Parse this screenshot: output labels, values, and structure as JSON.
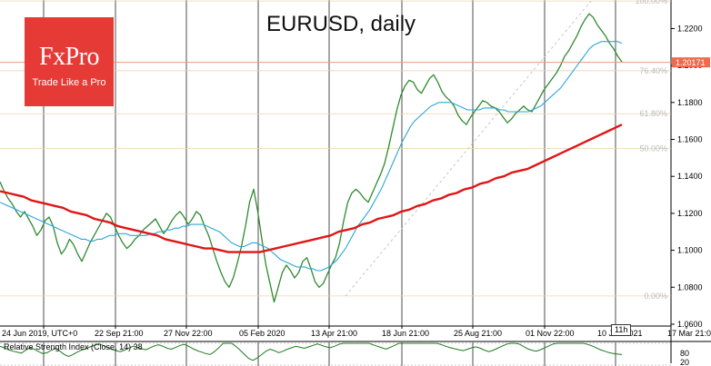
{
  "logo": {
    "brand": "FxPro",
    "tagline": "Trade Like a Pro"
  },
  "title": "EURUSD, daily",
  "countdown": "11h",
  "chart_data": [
    {
      "type": "line",
      "title": "EURUSD, daily",
      "description_series": "candlesticks approximated as close line",
      "x_tick_labels": [
        "24 Jun 2019, UTC+0",
        "22 Sep 21:00",
        "27 Nov 22:00",
        "05 Feb 2020",
        "13 Apr 21:00",
        "18 Jun 21:00",
        "25 Aug 21:00",
        "01 Nov 22:00",
        "10 Jan 2021",
        "17 Mar 21:00"
      ],
      "y_tick_labels": [
        "1.2200",
        "1.2000",
        "1.1800",
        "1.1600",
        "1.1400",
        "1.1200",
        "1.1000",
        "1.0800",
        "1.0600"
      ],
      "ylim": [
        1.059,
        1.233
      ],
      "grid": true,
      "current_price": "1.20171",
      "current_price_value": 1.2017,
      "fib_levels": [
        {
          "label": "100.00%",
          "value": 1.2349
        },
        {
          "label": "76.40%",
          "value": 1.1972
        },
        {
          "label": "61.80%",
          "value": 1.1739
        },
        {
          "label": "50.00%",
          "value": 1.1551
        },
        {
          "label": "0.00%",
          "value": 1.0753
        }
      ],
      "series": [
        {
          "name": "Price",
          "color": "#2f8a2f",
          "values": [
            1.137,
            1.132,
            1.128,
            1.125,
            1.121,
            1.118,
            1.121,
            1.117,
            1.113,
            1.108,
            1.111,
            1.116,
            1.118,
            1.113,
            1.104,
            1.098,
            1.101,
            1.106,
            1.103,
            1.098,
            1.094,
            1.099,
            1.104,
            1.108,
            1.112,
            1.116,
            1.12,
            1.118,
            1.113,
            1.108,
            1.104,
            1.101,
            1.103,
            1.106,
            1.108,
            1.111,
            1.113,
            1.115,
            1.117,
            1.113,
            1.109,
            1.112,
            1.116,
            1.119,
            1.121,
            1.118,
            1.114,
            1.117,
            1.121,
            1.119,
            1.113,
            1.108,
            1.101,
            1.094,
            1.088,
            1.083,
            1.08,
            1.085,
            1.093,
            1.102,
            1.113,
            1.126,
            1.133,
            1.121,
            1.106,
            1.092,
            1.082,
            1.072,
            1.08,
            1.088,
            1.092,
            1.089,
            1.085,
            1.088,
            1.094,
            1.096,
            1.09,
            1.083,
            1.08,
            1.082,
            1.087,
            1.092,
            1.096,
            1.104,
            1.116,
            1.126,
            1.131,
            1.133,
            1.131,
            1.128,
            1.126,
            1.131,
            1.136,
            1.141,
            1.147,
            1.156,
            1.166,
            1.176,
            1.184,
            1.189,
            1.192,
            1.191,
            1.187,
            1.185,
            1.189,
            1.193,
            1.195,
            1.191,
            1.186,
            1.183,
            1.181,
            1.178,
            1.173,
            1.17,
            1.168,
            1.172,
            1.175,
            1.178,
            1.181,
            1.18,
            1.178,
            1.177,
            1.175,
            1.172,
            1.169,
            1.171,
            1.174,
            1.176,
            1.178,
            1.176,
            1.175,
            1.179,
            1.183,
            1.187,
            1.19,
            1.193,
            1.196,
            1.2,
            1.205,
            1.208,
            1.212,
            1.216,
            1.221,
            1.225,
            1.228,
            1.226,
            1.222,
            1.219,
            1.216,
            1.212,
            1.209,
            1.205,
            1.202
          ]
        },
        {
          "name": "MA fast",
          "color": "#2aa7d8",
          "values": [
            1.126,
            1.125,
            1.124,
            1.123,
            1.122,
            1.121,
            1.12,
            1.119,
            1.118,
            1.117,
            1.116,
            1.115,
            1.114,
            1.113,
            1.112,
            1.111,
            1.11,
            1.109,
            1.108,
            1.107,
            1.106,
            1.106,
            1.105,
            1.105,
            1.106,
            1.106,
            1.107,
            1.108,
            1.108,
            1.109,
            1.109,
            1.109,
            1.108,
            1.108,
            1.108,
            1.108,
            1.108,
            1.109,
            1.109,
            1.11,
            1.11,
            1.111,
            1.111,
            1.112,
            1.112,
            1.113,
            1.113,
            1.114,
            1.114,
            1.114,
            1.114,
            1.113,
            1.112,
            1.111,
            1.11,
            1.108,
            1.106,
            1.104,
            1.103,
            1.102,
            1.102,
            1.103,
            1.104,
            1.104,
            1.103,
            1.102,
            1.101,
            1.099,
            1.097,
            1.095,
            1.094,
            1.093,
            1.092,
            1.091,
            1.091,
            1.091,
            1.09,
            1.09,
            1.089,
            1.089,
            1.09,
            1.091,
            1.093,
            1.095,
            1.098,
            1.101,
            1.105,
            1.109,
            1.113,
            1.116,
            1.119,
            1.122,
            1.126,
            1.13,
            1.134,
            1.139,
            1.144,
            1.149,
            1.154,
            1.159,
            1.163,
            1.167,
            1.17,
            1.172,
            1.174,
            1.176,
            1.178,
            1.179,
            1.18,
            1.18,
            1.18,
            1.18,
            1.179,
            1.178,
            1.177,
            1.176,
            1.176,
            1.176,
            1.176,
            1.177,
            1.177,
            1.177,
            1.177,
            1.176,
            1.176,
            1.175,
            1.175,
            1.175,
            1.175,
            1.175,
            1.175,
            1.176,
            1.177,
            1.178,
            1.18,
            1.182,
            1.184,
            1.186,
            1.188,
            1.191,
            1.194,
            1.197,
            1.2,
            1.203,
            1.206,
            1.209,
            1.211,
            1.212,
            1.213,
            1.213,
            1.213,
            1.213,
            1.213,
            1.212
          ]
        },
        {
          "name": "MA slow",
          "color": "#e01616",
          "values": [
            1.132,
            1.131,
            1.13,
            1.129,
            1.127,
            1.126,
            1.125,
            1.124,
            1.123,
            1.121,
            1.12,
            1.119,
            1.117,
            1.116,
            1.115,
            1.113,
            1.112,
            1.111,
            1.11,
            1.109,
            1.108,
            1.106,
            1.105,
            1.104,
            1.103,
            1.102,
            1.101,
            1.101,
            1.1,
            1.099,
            1.099,
            1.099,
            1.099,
            1.099,
            1.1,
            1.101,
            1.102,
            1.103,
            1.104,
            1.105,
            1.106,
            1.107,
            1.108,
            1.11,
            1.111,
            1.112,
            1.114,
            1.115,
            1.117,
            1.118,
            1.119,
            1.121,
            1.122,
            1.124,
            1.125,
            1.127,
            1.128,
            1.13,
            1.131,
            1.133,
            1.134,
            1.136,
            1.137,
            1.139,
            1.14,
            1.142,
            1.143,
            1.144,
            1.146,
            1.148,
            1.15,
            1.152,
            1.154,
            1.156,
            1.158,
            1.16,
            1.162,
            1.164,
            1.166,
            1.168
          ]
        }
      ]
    },
    {
      "type": "line",
      "title": "Relative Strength Index (Close, 14) 38",
      "ylim": [
        20,
        80
      ],
      "y_tick_labels": [
        "80",
        "20"
      ],
      "grid": true,
      "series": [
        {
          "name": "RSI",
          "color": "#1f7a1f",
          "values": [
            55,
            52,
            48,
            45,
            43,
            41,
            47,
            52,
            49,
            44,
            40,
            42,
            47,
            51,
            45,
            38,
            34,
            38,
            43,
            47,
            50,
            54,
            57,
            60,
            57,
            53,
            49,
            46,
            44,
            47,
            51,
            55,
            53,
            50,
            48,
            52,
            56,
            58,
            55,
            51,
            49,
            53,
            57,
            59,
            55,
            50,
            46,
            43,
            40,
            38,
            44,
            52,
            61,
            72,
            64,
            55,
            47,
            38,
            30,
            26,
            31,
            38,
            45,
            49,
            46,
            42,
            45,
            49,
            52,
            55,
            53,
            51,
            54,
            57,
            60,
            57,
            54,
            52,
            55,
            59,
            63,
            66,
            69,
            72,
            70,
            66,
            62,
            58,
            55,
            52,
            49,
            53,
            57,
            61,
            64,
            67,
            70,
            74,
            77,
            73,
            69,
            65,
            61,
            58,
            55,
            52,
            50,
            48,
            46,
            49,
            52,
            54,
            51,
            47,
            44,
            47,
            51,
            55,
            59,
            62,
            65,
            60,
            55,
            50,
            47,
            45,
            48,
            52,
            56,
            60,
            64,
            67,
            70,
            73,
            70,
            66,
            62,
            59,
            56,
            52,
            48,
            45,
            42,
            40,
            39,
            38
          ]
        }
      ]
    }
  ]
}
